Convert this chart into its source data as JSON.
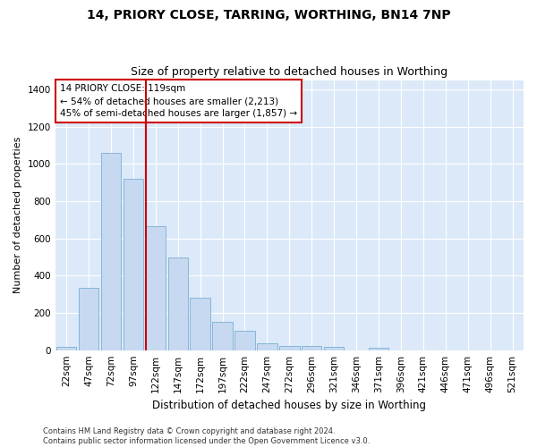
{
  "title": "14, PRIORY CLOSE, TARRING, WORTHING, BN14 7NP",
  "subtitle": "Size of property relative to detached houses in Worthing",
  "xlabel": "Distribution of detached houses by size in Worthing",
  "ylabel": "Number of detached properties",
  "bar_labels": [
    "22sqm",
    "47sqm",
    "72sqm",
    "97sqm",
    "122sqm",
    "147sqm",
    "172sqm",
    "197sqm",
    "222sqm",
    "247sqm",
    "272sqm",
    "296sqm",
    "321sqm",
    "346sqm",
    "371sqm",
    "396sqm",
    "421sqm",
    "446sqm",
    "471sqm",
    "496sqm",
    "521sqm"
  ],
  "bar_values": [
    20,
    333,
    1057,
    920,
    665,
    498,
    280,
    153,
    103,
    37,
    23,
    23,
    18,
    0,
    12,
    0,
    0,
    0,
    0,
    0,
    0
  ],
  "bar_color": "#c6d9f0",
  "bar_edge_color": "#7bafd4",
  "property_line_index": 4,
  "annotation_text_line1": "14 PRIORY CLOSE: 119sqm",
  "annotation_text_line2": "← 54% of detached houses are smaller (2,213)",
  "annotation_text_line3": "45% of semi-detached houses are larger (1,857) →",
  "annotation_box_color": "#ffffff",
  "annotation_box_edge_color": "#cc0000",
  "property_line_color": "#cc0000",
  "ylim": [
    0,
    1450
  ],
  "yticks": [
    0,
    200,
    400,
    600,
    800,
    1000,
    1200,
    1400
  ],
  "background_color": "#dce9f8",
  "figure_background_color": "#ffffff",
  "footnote_line1": "Contains HM Land Registry data © Crown copyright and database right 2024.",
  "footnote_line2": "Contains public sector information licensed under the Open Government Licence v3.0.",
  "title_fontsize": 10,
  "subtitle_fontsize": 9,
  "xlabel_fontsize": 8.5,
  "ylabel_fontsize": 8,
  "tick_fontsize": 7.5,
  "annotation_fontsize": 7.5,
  "footnote_fontsize": 6
}
